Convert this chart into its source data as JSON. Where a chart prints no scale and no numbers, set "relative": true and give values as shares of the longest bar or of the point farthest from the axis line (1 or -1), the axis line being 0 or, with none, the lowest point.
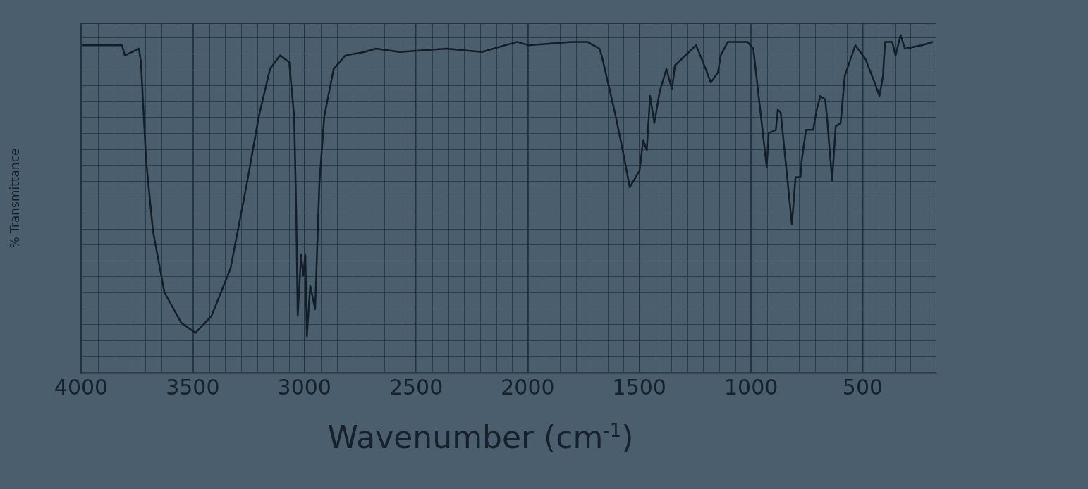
{
  "chart_data": {
    "type": "line",
    "xlabel": "Wavenumber (cm$^{-1}$)",
    "ylabel": "% Transmittance",
    "relative": true,
    "grid": "x",
    "legend": false,
    "marker": "none",
    "line_style": "solid",
    "xlim": [
      4000,
      170
    ],
    "xticks": [
      4000,
      3500,
      3000,
      2500,
      2000,
      1500,
      1000,
      500
    ],
    "series": [
      {
        "color": "#141e28",
        "x": [
          3994,
          3817,
          3804,
          3741,
          3732,
          3709,
          3678,
          3627,
          3552,
          3488,
          3416,
          3331,
          3258,
          3204,
          3154,
          3109,
          3068,
          3046,
          3037,
          3030,
          3015,
          3005,
          2996,
          2989,
          2974,
          2952,
          2933,
          2911,
          2869,
          2816,
          2731,
          2680,
          2573,
          2364,
          2206,
          2048,
          1995,
          1805,
          1733,
          1679,
          1669,
          1606,
          1575,
          1543,
          1499,
          1483,
          1467,
          1452,
          1433,
          1410,
          1379,
          1354,
          1341,
          1246,
          1215,
          1180,
          1148,
          1136,
          1104,
          1016,
          990,
          930,
          921,
          889,
          880,
          867,
          817,
          801,
          779,
          773,
          754,
          722,
          706,
          690,
          668,
          659,
          637,
          621,
          599,
          580,
          533,
          488,
          447,
          425,
          409,
          400,
          368,
          353,
          330,
          311,
          236,
          185
        ],
        "values": [
          0.97,
          0.97,
          0.94,
          0.96,
          0.92,
          0.63,
          0.42,
          0.24,
          0.15,
          0.12,
          0.17,
          0.31,
          0.56,
          0.76,
          0.9,
          0.94,
          0.92,
          0.76,
          0.49,
          0.17,
          0.35,
          0.29,
          0.35,
          0.11,
          0.26,
          0.19,
          0.56,
          0.76,
          0.9,
          0.94,
          0.95,
          0.96,
          0.95,
          0.96,
          0.95,
          0.98,
          0.97,
          0.98,
          0.98,
          0.96,
          0.94,
          0.76,
          0.66,
          0.55,
          0.6,
          0.69,
          0.66,
          0.82,
          0.74,
          0.83,
          0.9,
          0.84,
          0.91,
          0.97,
          0.92,
          0.86,
          0.89,
          0.94,
          0.98,
          0.98,
          0.96,
          0.61,
          0.71,
          0.72,
          0.78,
          0.77,
          0.44,
          0.58,
          0.58,
          0.63,
          0.72,
          0.72,
          0.78,
          0.82,
          0.81,
          0.75,
          0.57,
          0.73,
          0.74,
          0.88,
          0.97,
          0.93,
          0.86,
          0.82,
          0.88,
          0.98,
          0.98,
          0.94,
          1,
          0.96,
          0.97,
          0.98
        ]
      }
    ]
  }
}
